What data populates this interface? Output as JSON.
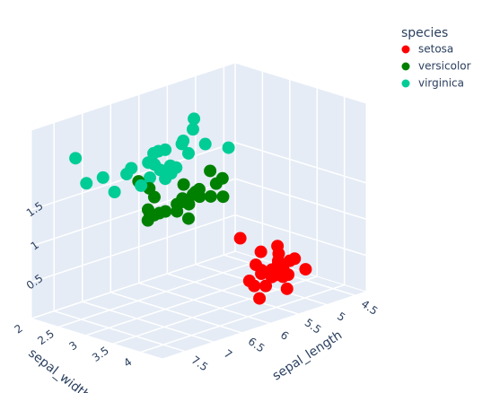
{
  "chart_data": {
    "type": "scatter3d",
    "legend_title": "species",
    "legend_position": "top-right",
    "x_title": "sepal_length",
    "y_title": "sepal_width",
    "xlim": [
      4.3,
      7.9
    ],
    "ylim": [
      2,
      4.4
    ],
    "zlim": [
      0,
      2.6
    ],
    "xticks": [
      4.5,
      5,
      5.5,
      6,
      6.5,
      7,
      7.5
    ],
    "yticks": [
      2,
      2.5,
      3,
      3.5,
      4
    ],
    "zticks": [
      0.5,
      1,
      1.5
    ],
    "grid": true,
    "series": [
      {
        "name": "setosa",
        "color": "#ff0000",
        "x": [
          5.1,
          4.9,
          4.7,
          4.6,
          5.0,
          5.4,
          4.6,
          5.0,
          4.4,
          4.9,
          5.4,
          4.8,
          4.8,
          4.3,
          5.8,
          5.7,
          5.4,
          5.1,
          5.7,
          5.1,
          5.4,
          5.1,
          4.6,
          5.1,
          4.8,
          5.0,
          4.5
        ],
        "y": [
          3.5,
          3.0,
          3.2,
          3.1,
          3.6,
          3.9,
          3.4,
          3.4,
          2.9,
          3.1,
          3.7,
          3.4,
          3.0,
          3.0,
          4.0,
          4.4,
          3.9,
          3.5,
          3.8,
          3.8,
          3.4,
          3.7,
          3.6,
          3.3,
          3.4,
          3.5,
          2.3
        ],
        "z": [
          0.2,
          0.2,
          0.2,
          0.2,
          0.2,
          0.4,
          0.3,
          0.2,
          0.2,
          0.1,
          0.2,
          0.2,
          0.1,
          0.1,
          0.2,
          0.4,
          0.4,
          0.3,
          0.3,
          0.3,
          0.2,
          0.4,
          0.2,
          0.5,
          0.2,
          0.6,
          0.3
        ]
      },
      {
        "name": "versicolor",
        "color": "#008000",
        "x": [
          7.0,
          6.4,
          6.9,
          5.5,
          6.5,
          5.7,
          6.3,
          4.9,
          6.6,
          5.2,
          5.0,
          5.9,
          6.0,
          6.1,
          5.6,
          6.7,
          5.6,
          5.8,
          6.2,
          5.6,
          5.9,
          6.1,
          6.3,
          6.1,
          6.4
        ],
        "y": [
          3.2,
          3.2,
          3.1,
          2.3,
          2.8,
          2.8,
          3.3,
          2.4,
          2.9,
          2.7,
          2.0,
          3.0,
          2.2,
          2.9,
          2.9,
          3.1,
          3.0,
          2.7,
          2.2,
          2.5,
          3.2,
          2.8,
          2.5,
          2.8,
          2.9
        ],
        "z": [
          1.4,
          1.5,
          1.5,
          1.3,
          1.5,
          1.3,
          1.6,
          1.0,
          1.3,
          1.4,
          1.0,
          1.5,
          1.0,
          1.4,
          1.3,
          1.4,
          1.5,
          1.0,
          1.5,
          1.1,
          1.8,
          1.3,
          1.5,
          1.2,
          1.3
        ]
      },
      {
        "name": "virginica",
        "color": "#00cc96",
        "x": [
          6.3,
          5.8,
          7.1,
          6.3,
          6.5,
          7.6,
          4.9,
          7.3,
          6.7,
          7.2,
          6.5,
          6.4,
          6.8,
          5.7,
          5.8,
          6.4,
          6.5,
          7.7,
          7.7,
          6.0,
          6.9,
          5.6,
          7.7,
          6.3,
          6.7
        ],
        "y": [
          3.3,
          2.7,
          3.0,
          2.9,
          3.0,
          3.0,
          2.5,
          2.9,
          2.5,
          3.6,
          3.2,
          2.7,
          3.0,
          2.5,
          2.8,
          3.2,
          3.0,
          3.8,
          2.6,
          2.2,
          3.2,
          2.8,
          2.8,
          2.7,
          3.3
        ],
        "z": [
          2.5,
          1.9,
          2.1,
          1.8,
          2.2,
          2.1,
          1.7,
          1.8,
          1.8,
          2.5,
          2.0,
          1.9,
          2.1,
          2.0,
          2.4,
          2.3,
          1.8,
          2.2,
          2.3,
          1.5,
          2.3,
          2.0,
          2.0,
          1.8,
          2.1
        ]
      }
    ]
  }
}
